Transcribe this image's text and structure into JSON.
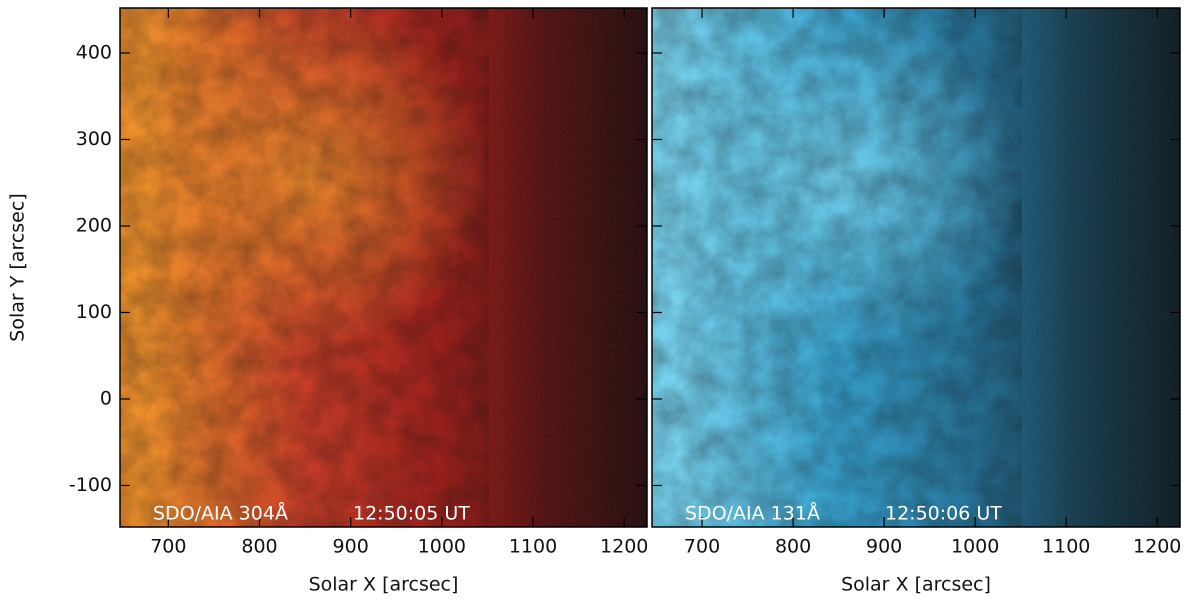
{
  "chart_data": [
    {
      "type": "image",
      "xlabel": "Solar X [arcsec]",
      "ylabel": "Solar Y [arcsec]",
      "instrument": "SDO/AIA 304Å",
      "time": "12:50:05 UT",
      "xlim": [
        647,
        1225
      ],
      "ylim": [
        -148,
        452
      ],
      "xticks": [
        700,
        800,
        900,
        1000,
        1100,
        1200
      ],
      "yticks": [
        -100,
        0,
        100,
        200,
        300,
        400
      ],
      "colors": [
        "#f08a1e",
        "#c9321a",
        "#a0140e",
        "#4a0606",
        "#1c0202"
      ]
    },
    {
      "type": "image",
      "xlabel": "Solar X [arcsec]",
      "instrument": "SDO/AIA 131Å",
      "time": "12:50:06 UT",
      "xlim": [
        645,
        1225
      ],
      "ylim": [
        -148,
        452
      ],
      "xticks": [
        700,
        800,
        900,
        1000,
        1100,
        1200
      ],
      "yticks": [
        -100,
        0,
        100,
        200,
        300,
        400
      ],
      "colors": [
        "#6fd3f2",
        "#2a9fd0",
        "#1a6f99",
        "#0b3346",
        "#041218"
      ]
    }
  ]
}
